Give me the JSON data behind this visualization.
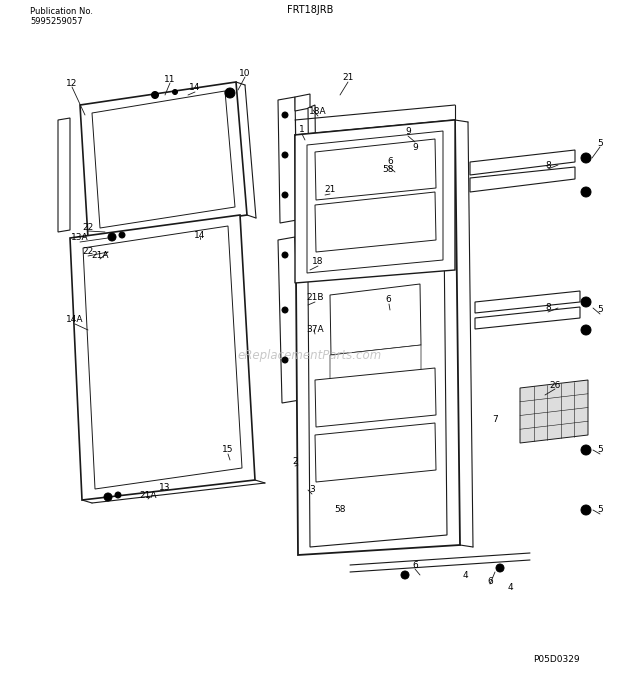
{
  "title_top": "FRT18JRB",
  "pub_no_label": "Publication No.",
  "pub_no": "5995259057",
  "watermark": "eReplacementParts.com",
  "part_code": "P05D0329",
  "background_color": "#ffffff",
  "line_color": "#1a1a1a",
  "fig_width": 6.2,
  "fig_height": 6.78,
  "dpi": 100
}
